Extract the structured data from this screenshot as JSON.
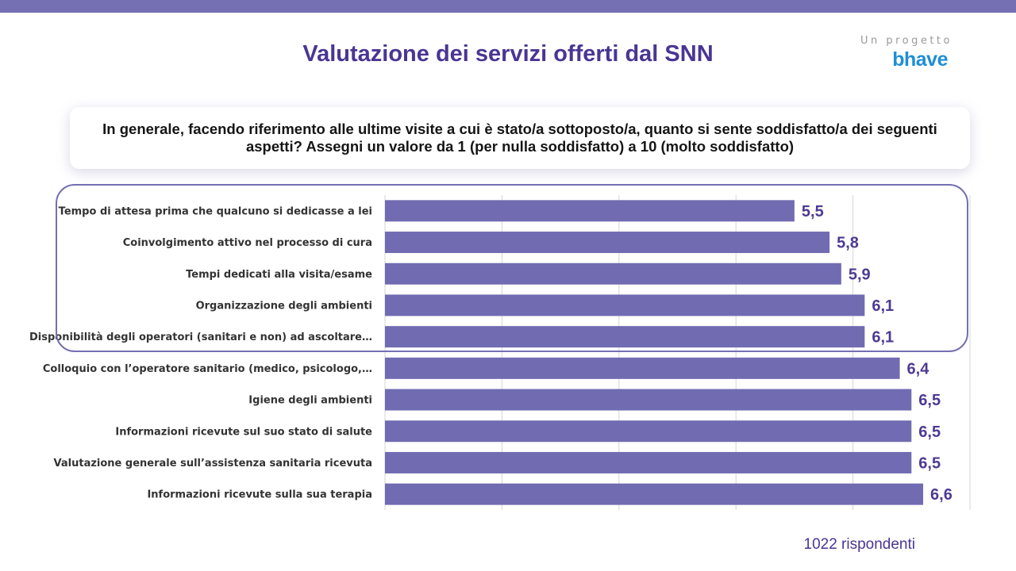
{
  "colors": {
    "accent": "#7470b3",
    "title": "#4a3594",
    "bar": "#716bb2",
    "value": "#4e3a93",
    "brand_blue": "#1f8ed8",
    "grid": "#d6d6d6"
  },
  "slide": {
    "title": "Valutazione dei servizi offerti dal SNN",
    "brand_tagline": "Un progetto",
    "brand_logo": "bhave",
    "question": "In generale, facendo riferimento alle ultime visite a cui è stato/a sottoposto/a, quanto si sente soddisfatto/a dei seguenti aspetti? Assegni un valore da 1 (per nulla soddisfatto) a 10 (molto soddisfatto)",
    "respondents": "1022 rispondenti"
  },
  "chart_data": {
    "type": "bar",
    "orientation": "horizontal",
    "title": "",
    "xlabel": "",
    "ylabel": "",
    "xlim": [
      2,
      7
    ],
    "grid": true,
    "highlighted_count": 5,
    "categories": [
      "Tempo di attesa prima che qualcuno si dedicasse a lei",
      "Coinvolgimento attivo nel processo di cura",
      "Tempi dedicati alla visita/esame",
      "Organizzazione degli ambienti",
      "Disponibilità degli operatori (sanitari e non) ad ascoltare…",
      "Colloquio con l’operatore sanitario (medico, psicologo,…",
      "Igiene degli ambienti",
      "Informazioni ricevute sul suo stato di salute",
      "Valutazione generale sull’assistenza sanitaria ricevuta",
      "Informazioni ricevute sulla sua terapia"
    ],
    "values": [
      5.5,
      5.8,
      5.9,
      6.1,
      6.1,
      6.4,
      6.5,
      6.5,
      6.5,
      6.6
    ],
    "value_labels": [
      "5,5",
      "5,8",
      "5,9",
      "6,1",
      "6,1",
      "6,4",
      "6,5",
      "6,5",
      "6,5",
      "6,6"
    ]
  }
}
